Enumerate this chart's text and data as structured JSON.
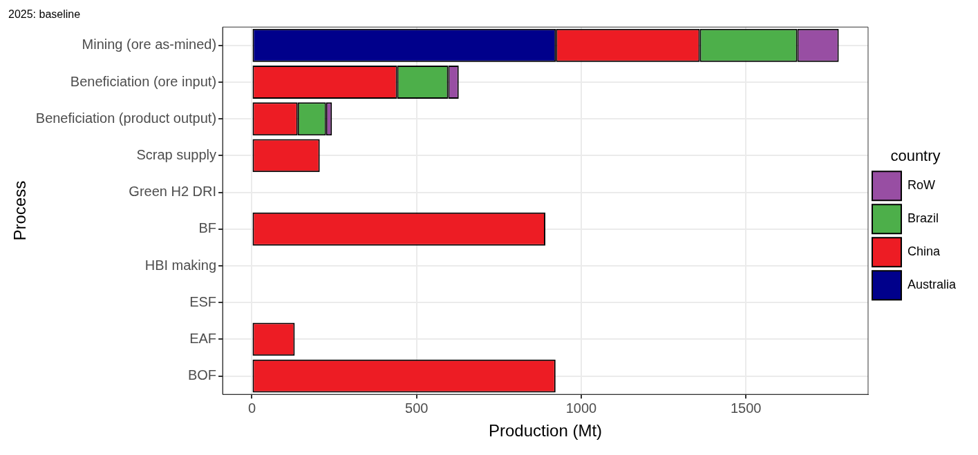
{
  "chart_data": {
    "type": "bar",
    "orientation": "horizontal",
    "stacked": true,
    "title": "2025: baseline",
    "xlabel": "Production (Mt)",
    "ylabel": "Process",
    "legend_title": "country",
    "legend": "right",
    "grid": true,
    "categories": [
      "Mining (ore as-mined)",
      "Beneficiation (ore input)",
      "Beneficiation (product output)",
      "Scrap supply",
      "Green H2 DRI",
      "BF",
      "HBI making",
      "ESF",
      "EAF",
      "BOF"
    ],
    "series": [
      {
        "name": "Australia",
        "color": "#00008b",
        "values": [
          923,
          0,
          0,
          0,
          0,
          0,
          0,
          0,
          0,
          0
        ]
      },
      {
        "name": "China",
        "color": "#ed1c24",
        "values": [
          437,
          441,
          139,
          206,
          0,
          891,
          0,
          0,
          130,
          922
        ]
      },
      {
        "name": "Brazil",
        "color": "#4daf4a",
        "values": [
          296,
          155,
          86,
          0,
          0,
          0,
          0,
          0,
          0,
          0
        ]
      },
      {
        "name": "RoW",
        "color": "#984ea3",
        "values": [
          126,
          32,
          18,
          0,
          0,
          0,
          0,
          0,
          0,
          0
        ]
      }
    ],
    "xlim": [
      -89,
      1871
    ],
    "xticks": [
      0,
      500,
      1000,
      1500
    ]
  }
}
